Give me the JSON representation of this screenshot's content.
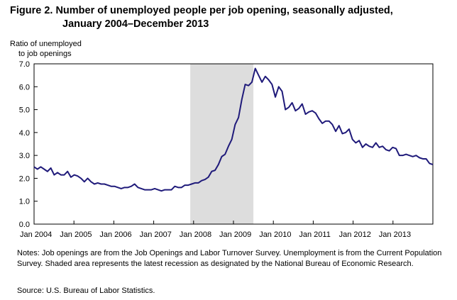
{
  "header": {
    "title_line1": "Figure 2. Number of unemployed people per job opening, seasonally adjusted,",
    "title_line2": "January 2004–December 2013"
  },
  "y_axis_label": {
    "line1": "Ratio of unemployed",
    "line2": "to job openings"
  },
  "footer": {
    "notes": "Notes: Job openings are from the Job Openings and Labor Turnover Survey. Unemployment is from the Current Population Survey. Shaded area represents the latest recession as designated by the National Bureau of Economic Research.",
    "source": "Source: U.S. Bureau of Labor Statistics."
  },
  "colors": {
    "line": "#1f1a7a",
    "recession_shade": "#dddddd",
    "axis": "#000000"
  },
  "chart_data": {
    "type": "line",
    "title": "Number of unemployed people per job opening, seasonally adjusted, January 2004–December 2013",
    "ylabel": "Ratio of unemployed to job openings",
    "xlabel": "",
    "ylim": [
      0,
      7
    ],
    "yticks": [
      "0.0",
      "1.0",
      "2.0",
      "3.0",
      "4.0",
      "5.0",
      "6.0",
      "7.0"
    ],
    "xticks": [
      "Jan 2004",
      "Jan 2005",
      "Jan 2006",
      "Jan 2007",
      "Jan 2008",
      "Jan 2009",
      "Jan 2010",
      "Jan 2011",
      "Jan 2012",
      "Jan 2013"
    ],
    "xrange": [
      "2004-01",
      "2013-12"
    ],
    "grid": false,
    "legend": "none",
    "recession": {
      "start": "2007-12",
      "end": "2009-06"
    },
    "series": [
      {
        "start": "2004-01",
        "frequency": "monthly",
        "values": [
          2.5,
          2.4,
          2.5,
          2.4,
          2.3,
          2.45,
          2.15,
          2.25,
          2.15,
          2.15,
          2.3,
          2.05,
          2.15,
          2.1,
          2.0,
          1.85,
          2.0,
          1.85,
          1.75,
          1.8,
          1.75,
          1.75,
          1.7,
          1.65,
          1.65,
          1.6,
          1.55,
          1.6,
          1.6,
          1.65,
          1.75,
          1.6,
          1.55,
          1.5,
          1.5,
          1.5,
          1.55,
          1.5,
          1.45,
          1.5,
          1.5,
          1.5,
          1.65,
          1.6,
          1.6,
          1.7,
          1.7,
          1.75,
          1.8,
          1.8,
          1.9,
          1.95,
          2.05,
          2.3,
          2.35,
          2.6,
          2.95,
          3.05,
          3.4,
          3.7,
          4.35,
          4.65,
          5.45,
          6.1,
          6.05,
          6.2,
          6.8,
          6.5,
          6.2,
          6.45,
          6.3,
          6.1,
          5.55,
          6.0,
          5.8,
          5.0,
          5.1,
          5.3,
          4.95,
          5.05,
          5.25,
          4.8,
          4.9,
          4.95,
          4.85,
          4.6,
          4.4,
          4.5,
          4.5,
          4.35,
          4.05,
          4.3,
          3.95,
          4.0,
          4.15,
          3.7,
          3.55,
          3.65,
          3.35,
          3.5,
          3.4,
          3.35,
          3.55,
          3.35,
          3.4,
          3.25,
          3.2,
          3.35,
          3.3,
          3.0,
          3.0,
          3.05,
          3.0,
          2.95,
          3.0,
          2.9,
          2.85,
          2.85,
          2.65,
          2.6
        ]
      }
    ]
  }
}
